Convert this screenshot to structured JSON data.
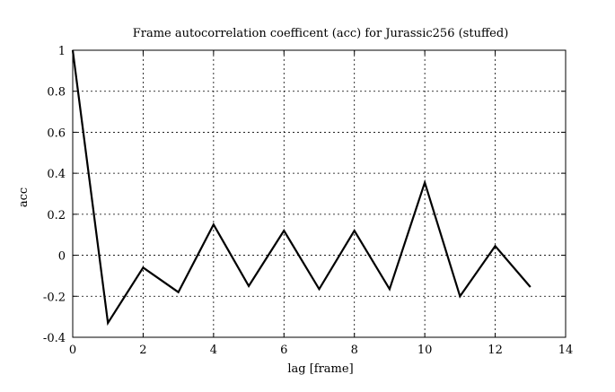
{
  "chart_data": {
    "type": "line",
    "title": "Frame autocorrelation coefficent (acc) for Jurassic256 (stuffed)",
    "xlabel": "lag [frame]",
    "ylabel": "acc",
    "xlim": [
      0,
      14
    ],
    "ylim": [
      -0.4,
      1
    ],
    "xticks": [
      0,
      2,
      4,
      6,
      8,
      10,
      12,
      14
    ],
    "yticks": [
      1,
      0.8,
      0.6,
      0.4,
      0.2,
      0,
      -0.2,
      -0.4
    ],
    "xtick_labels": [
      "0",
      "2",
      "4",
      "6",
      "8",
      "10",
      "12",
      "14"
    ],
    "ytick_labels": [
      "1",
      "0.8",
      "0.6",
      "0.4",
      "0.2",
      "0",
      "-0.2",
      "-0.4"
    ],
    "grid": true,
    "series": [
      {
        "color": "#000000",
        "x": [
          0,
          1,
          2,
          3,
          4,
          5,
          6,
          7,
          8,
          9,
          10,
          11,
          12,
          13
        ],
        "y": [
          1.0,
          -0.33,
          -0.06,
          -0.18,
          0.15,
          -0.15,
          0.12,
          -0.165,
          0.12,
          -0.165,
          0.355,
          -0.2,
          0.045,
          -0.155
        ]
      }
    ]
  }
}
